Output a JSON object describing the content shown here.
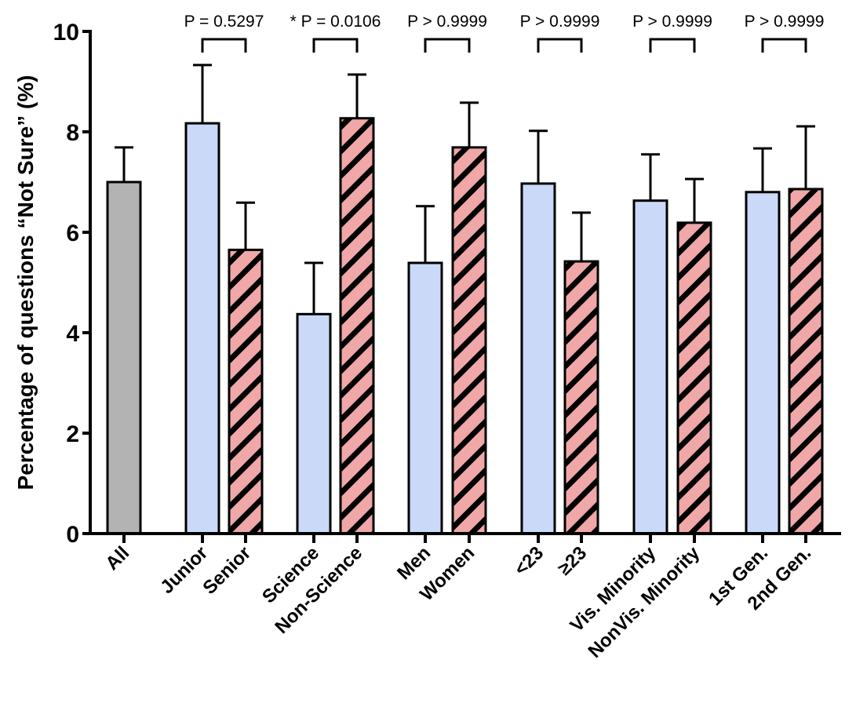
{
  "chart_data": {
    "type": "bar",
    "title": "",
    "xlabel": "",
    "ylabel": "Percentage of questions “Not Sure” (%)",
    "ylim": [
      0,
      10
    ],
    "yticks": [
      0,
      2,
      4,
      6,
      8,
      10
    ],
    "grid": false,
    "legend": "none",
    "error_bars": "upper (mean + error)",
    "categories": [
      "All",
      "Junior",
      "Senior",
      "Science",
      "Non-Science",
      "Men",
      "Women",
      "<23",
      "≥23",
      "Vis. Minority",
      "NonVis. Minority",
      "1st Gen.",
      "2nd Gen."
    ],
    "values": [
      7.0,
      8.17,
      5.65,
      4.37,
      8.27,
      5.39,
      7.69,
      6.97,
      5.42,
      6.63,
      6.19,
      6.8,
      6.86
    ],
    "error_upper": [
      7.69,
      9.33,
      6.59,
      5.39,
      9.14,
      6.52,
      8.58,
      8.02,
      6.39,
      7.55,
      7.06,
      7.67,
      8.11
    ],
    "styles": [
      "gray",
      "blue",
      "red-hatched",
      "blue",
      "red-hatched",
      "blue",
      "red-hatched",
      "blue",
      "red-hatched",
      "blue",
      "red-hatched",
      "blue",
      "red-hatched"
    ],
    "colors": {
      "gray": "#b3b3b3",
      "blue": "#c9d9f7",
      "red": "#f0a7a8",
      "outline": "#000000"
    },
    "comparisons": [
      {
        "pair": [
          "Junior",
          "Senior"
        ],
        "label": "P = 0.5297"
      },
      {
        "pair": [
          "Science",
          "Non-Science"
        ],
        "label": "* P = 0.0106"
      },
      {
        "pair": [
          "Men",
          "Women"
        ],
        "label": "P > 0.9999"
      },
      {
        "pair": [
          "<23",
          "≥23"
        ],
        "label": "P > 0.9999"
      },
      {
        "pair": [
          "Vis. Minority",
          "NonVis. Minority"
        ],
        "label": "P > 0.9999"
      },
      {
        "pair": [
          "1st Gen.",
          "2nd Gen."
        ],
        "label": "P > 0.9999"
      }
    ]
  }
}
